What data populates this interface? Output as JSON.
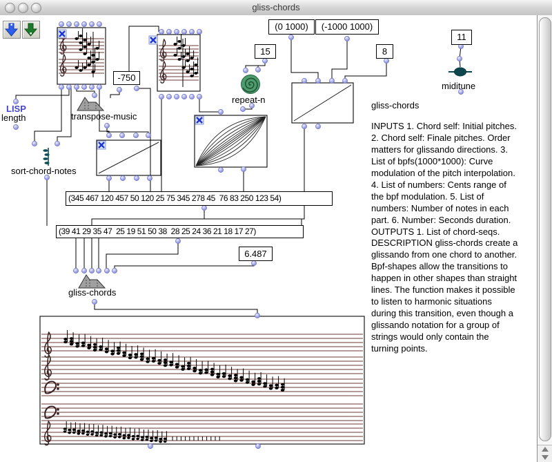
{
  "window": {
    "title": "gliss-chords"
  },
  "icons": {
    "toolbar": [
      "blue-down-arrow",
      "green-down-arrow"
    ],
    "transpose_music": "gray-mountain-trapezoid",
    "gliss_chords": "gray-mountain-trapezoid",
    "repeat_n": "green-spiral",
    "miditune": "teal-bead-on-line",
    "sort_chord_notes": "teal-note-stack",
    "abort_flag": "blue-x-checkbox",
    "connector": "lavender-dot"
  },
  "boxes": {
    "transpose_amount": "-750",
    "repeat_count": "15",
    "range_a": "(0 1000)",
    "range_b": "(-1000 1000)",
    "num_parts": "8",
    "midi_channel": "11",
    "duration": "6.487",
    "cents_list": "(345 467 120 457 50 120 25 75 345 278 45  76 83 250 123 54)",
    "notes_list": "(39 41 29 35 47  25 19 51 50 38  28 25 24 36 21 18 17 27)"
  },
  "labels": {
    "lisp": "LISP",
    "length": "length",
    "transpose": "transpose-music",
    "sort": "sort-chord-notes",
    "repeat": "repeat-n",
    "miditune": "miditune",
    "gliss": "gliss-chords"
  },
  "doc": {
    "title": "gliss-chords",
    "inputs": "INPUTS 1. Chord self: Initial pitches.\n2. Chord self: Finale pitches. Order\nmatters for glissando directions. 3.\nList of bpfs(1000*1000): Curve\nmodulation of the pitch interpolation.\n4. List of numbers: Cents range of\n the bpf modulation. 5. List of\nnumbers: Number of notes in each\npart. 6. Number: Seconds duration.\nOUTPUTS 1. List of chord-seqs.",
    "description": "DESCRIPTION gliss-chords create a\nglissando from one chord to another.\nBpf-shapes allow the transitions to\nhappen in other shapes than straight\nlines. The function makes it possible\nto listen to harmonic situations\nduring this transition, even though a\nglissando notation for a group of\nstrings would only contain the\nturning points."
  },
  "colors": {
    "connector_dot": "#9a9ede",
    "staff_line": "#6b3434",
    "spiral_green": "#4e9c6d",
    "teal_icon": "#0d474d",
    "x_mark_blue": "#1b35d6",
    "lisp_blue": "#4646c8"
  }
}
